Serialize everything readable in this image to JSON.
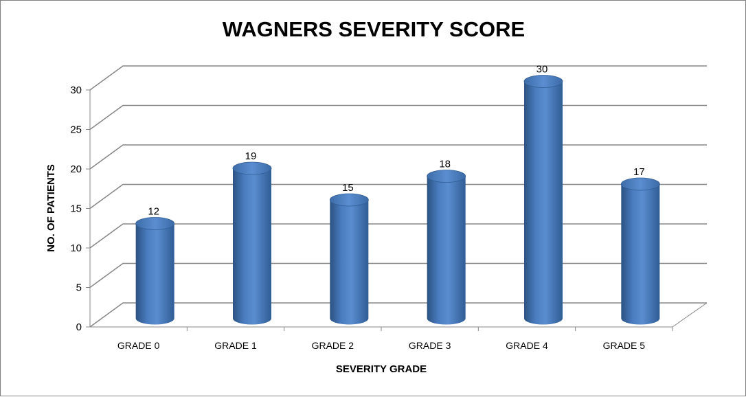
{
  "chart_data": {
    "type": "bar",
    "title": "WAGNERS SEVERITY SCORE",
    "xlabel": "SEVERITY GRADE",
    "ylabel": "NO. OF PATIENTS",
    "categories": [
      "GRADE 0",
      "GRADE 1",
      "GRADE 2",
      "GRADE 3",
      "GRADE 4",
      "GRADE 5"
    ],
    "values": [
      12,
      19,
      15,
      18,
      30,
      17
    ],
    "data_labels": [
      "12",
      "19",
      "15",
      "18",
      "30",
      "17"
    ],
    "yticks": [
      "0",
      "5",
      "10",
      "15",
      "20",
      "25",
      "30"
    ],
    "ylim": [
      0,
      30
    ],
    "grid": true,
    "legend": "none",
    "style": "3d-cylinder",
    "bar_color": "#4f81bd"
  }
}
